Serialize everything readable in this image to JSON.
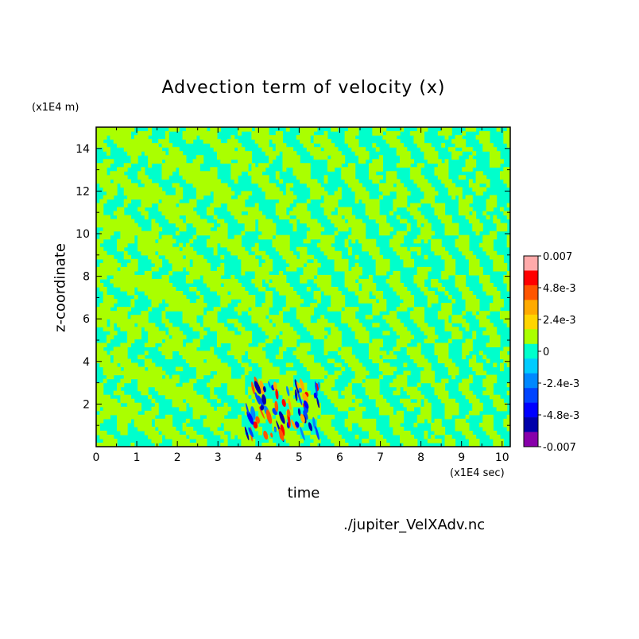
{
  "chart_data": {
    "type": "heatmap",
    "title": "Advection term of velocity (x)",
    "xlabel": "time",
    "ylabel": "z-coordinate",
    "x_unit_label": "(x1E4 sec)",
    "y_unit_label": "(x1E4 m)",
    "xlim": [
      0,
      10.2
    ],
    "ylim": [
      0,
      15
    ],
    "x_ticks": [
      "0",
      "1",
      "2",
      "3",
      "4",
      "5",
      "6",
      "7",
      "8",
      "9",
      "10"
    ],
    "y_ticks": [
      "2",
      "4",
      "6",
      "8",
      "10",
      "12",
      "14"
    ],
    "colorbar": {
      "labels": [
        "0.007",
        "4.8e-3",
        "2.4e-3",
        "0",
        "-2.4e-3",
        "-4.8e-3",
        "-0.007"
      ],
      "range": [
        -0.007,
        0.007
      ],
      "colors_top_to_bottom": [
        "#ffaaaa",
        "#ff0000",
        "#ff5500",
        "#ffaa00",
        "#ffd500",
        "#aaff00",
        "#00ffcc",
        "#00ccff",
        "#0088ff",
        "#0044ff",
        "#0000ff",
        "#0000aa",
        "#8800aa"
      ]
    },
    "field_description_values": {
      "dominant_levels": [
        0.0012,
        -0.0012
      ],
      "extreme_region": {
        "x_range": [
          3.7,
          5.5
        ],
        "z_range": [
          0.5,
          3.0
        ]
      }
    },
    "grid": false,
    "legend_placement": "right"
  },
  "footer": {
    "source": "./jupiter_VelXAdv.nc"
  },
  "colors": {
    "background": "#ffffff",
    "axis": "#000000",
    "positive_small": "#aaff00",
    "negative_small": "#00ffcc"
  }
}
